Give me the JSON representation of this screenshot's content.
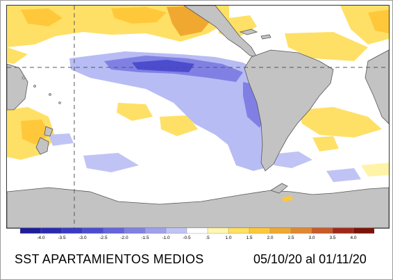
{
  "map": {
    "title": "SST APARTAMIENTOS MEDIOS",
    "period": "05/10/20 al 01/11/20",
    "colorbar": {
      "ticks": [
        "-4.0",
        "-3.5",
        "-3.0",
        "-2.5",
        "-2.0",
        "-1.5",
        "-1.0",
        "-0.5",
        ".5",
        "1.0",
        "1.5",
        "2.0",
        "2.5",
        "3.0",
        "3.5",
        "4.0"
      ],
      "colors": [
        "#1e1e9a",
        "#2a2ab0",
        "#3a3ac4",
        "#4c4cd0",
        "#6464dc",
        "#8080e4",
        "#a0a0ec",
        "#c0c4f4",
        "#ffffff",
        "#fff6b0",
        "#ffe060",
        "#ffc83a",
        "#f0a830",
        "#e08830",
        "#c85a28",
        "#a02818",
        "#7a1408"
      ]
    },
    "colors": {
      "land": "#c3c3c3",
      "ocean_neutral": "#ffffff",
      "warm": "#ffd84a",
      "warm_strong": "#f0a030",
      "cool": "#b8bcf4",
      "cool_strong": "#4a4ad6"
    }
  }
}
